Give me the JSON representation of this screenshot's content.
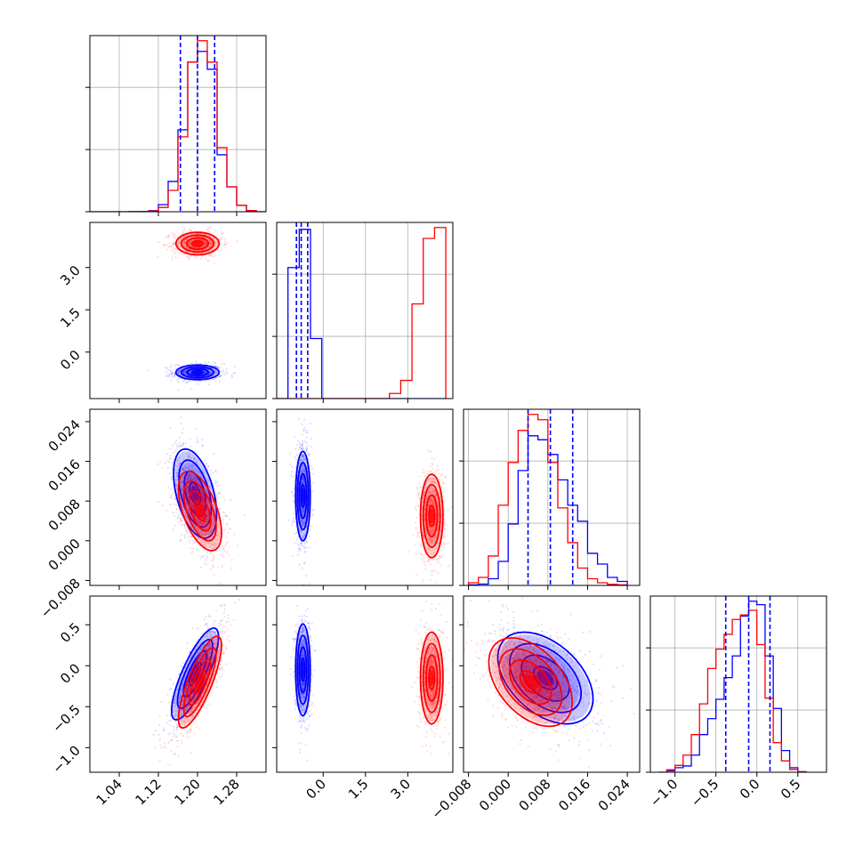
{
  "chart_data": {
    "type": "corner",
    "grid": true,
    "colors": {
      "blue": "#0000ff",
      "red": "#ff0000"
    },
    "series": [],
    "parameters": [
      {
        "range": [
          0.98,
          1.34
        ],
        "ticks": [
          1.04,
          1.12,
          1.2,
          1.28
        ],
        "tick_labels": [
          "1.04",
          "1.12",
          "1.20",
          "1.28"
        ]
      },
      {
        "range": [
          -1.65,
          4.6
        ],
        "ticks": [
          0.0,
          1.5,
          3.0
        ],
        "tick_labels": [
          "0.0",
          "1.5",
          "3.0"
        ]
      },
      {
        "range": [
          -0.009,
          0.0265
        ],
        "ticks": [
          -0.008,
          0.0,
          0.008,
          0.016,
          0.024
        ],
        "tick_labels": [
          "−0.008",
          "0.000",
          "0.008",
          "0.016",
          "0.024"
        ]
      },
      {
        "range": [
          -1.3,
          0.85
        ],
        "ticks": [
          -1.0,
          -0.5,
          0.0,
          0.5
        ],
        "tick_labels": [
          "−1.0",
          "−0.5",
          "0.0",
          "0.5"
        ]
      }
    ],
    "histograms": [
      {
        "param_index": 0,
        "edges": [
          0.98,
          1.0,
          1.02,
          1.04,
          1.06,
          1.08,
          1.1,
          1.12,
          1.14,
          1.16,
          1.18,
          1.2,
          1.22,
          1.24,
          1.26,
          1.28,
          1.3,
          1.32,
          1.34
        ],
        "blue": [
          0,
          0,
          0,
          0,
          0.2,
          0.6,
          3,
          20,
          85,
          230,
          420,
          450,
          400,
          160,
          70,
          18,
          3,
          0
        ],
        "red": [
          0,
          0,
          0,
          0,
          0.2,
          0.4,
          2,
          12,
          60,
          210,
          420,
          480,
          420,
          180,
          70,
          18,
          3,
          0
        ],
        "quantiles": [
          1.165,
          1.2,
          1.235
        ]
      },
      {
        "param_index": 1,
        "edges": [
          -1.65,
          -1.25,
          -0.85,
          -0.45,
          -0.05,
          0.35,
          0.75,
          1.15,
          1.55,
          1.95,
          2.35,
          2.75,
          3.15,
          3.55,
          3.95,
          4.35
        ],
        "blue": [
          0,
          720,
          930,
          330,
          0,
          0,
          0,
          0,
          0,
          0,
          0,
          0,
          0,
          0,
          0
        ],
        "red": [
          0,
          0,
          0,
          0,
          0,
          0,
          0,
          0,
          0,
          0,
          28,
          100,
          520,
          880,
          940
        ],
        "quantiles": [
          -0.95,
          -0.78,
          -0.55
        ]
      },
      {
        "param_index": 2,
        "edges": [
          -0.008,
          -0.006,
          -0.004,
          -0.002,
          0.0,
          0.002,
          0.004,
          0.006,
          0.008,
          0.01,
          0.012,
          0.014,
          0.016,
          0.018,
          0.02,
          0.022,
          0.024
        ],
        "blue": [
          2,
          5,
          25,
          90,
          230,
          430,
          560,
          545,
          490,
          395,
          300,
          240,
          120,
          80,
          30,
          15
        ],
        "red": [
          10,
          30,
          110,
          300,
          460,
          580,
          640,
          620,
          460,
          290,
          160,
          65,
          25,
          10,
          4,
          2
        ],
        "quantiles": [
          0.004,
          0.0085,
          0.013
        ]
      },
      {
        "param_index": 3,
        "edges": [
          -1.2,
          -1.1,
          -1.0,
          -0.9,
          -0.8,
          -0.7,
          -0.6,
          -0.5,
          -0.4,
          -0.3,
          -0.2,
          -0.1,
          0.0,
          0.1,
          0.2,
          0.3,
          0.4,
          0.5,
          0.6
        ],
        "blue": [
          0,
          12,
          40,
          55,
          150,
          330,
          470,
          640,
          830,
          1020,
          1370,
          1500,
          1470,
          1020,
          560,
          190,
          40,
          5
        ],
        "red": [
          0,
          22,
          60,
          150,
          330,
          600,
          910,
          1080,
          1210,
          1340,
          1380,
          1420,
          1120,
          650,
          260,
          100,
          25,
          4
        ],
        "quantiles": [
          -0.38,
          -0.1,
          0.16
        ]
      }
    ],
    "pairs": [
      {
        "row": 1,
        "col": 0,
        "blue": {
          "center": [
            1.2,
            -0.72
          ],
          "sigma": [
            0.022,
            0.13
          ],
          "rho": 0.0
        },
        "red": {
          "center": [
            1.2,
            3.85
          ],
          "sigma": [
            0.022,
            0.2
          ],
          "rho": 0.0
        }
      },
      {
        "row": 2,
        "col": 0,
        "blue": {
          "center": [
            1.195,
            0.0095
          ],
          "sigma": [
            0.022,
            0.0045
          ],
          "rho": -0.45
        },
        "red": {
          "center": [
            1.205,
            0.006
          ],
          "sigma": [
            0.022,
            0.004
          ],
          "rho": -0.55
        }
      },
      {
        "row": 2,
        "col": 1,
        "blue": {
          "center": [
            -0.72,
            0.009
          ],
          "sigma": [
            0.13,
            0.0045
          ],
          "rho": 0.0
        },
        "red": {
          "center": [
            3.85,
            0.005
          ],
          "sigma": [
            0.2,
            0.0042
          ],
          "rho": 0.0
        }
      },
      {
        "row": 3,
        "col": 0,
        "blue": {
          "center": [
            1.195,
            -0.1
          ],
          "sigma": [
            0.024,
            0.28
          ],
          "rho": 0.8
        },
        "red": {
          "center": [
            1.205,
            -0.2
          ],
          "sigma": [
            0.022,
            0.28
          ],
          "rho": 0.8
        }
      },
      {
        "row": 3,
        "col": 1,
        "blue": {
          "center": [
            -0.72,
            -0.05
          ],
          "sigma": [
            0.13,
            0.28
          ],
          "rho": 0.0
        },
        "red": {
          "center": [
            3.85,
            -0.15
          ],
          "sigma": [
            0.2,
            0.28
          ],
          "rho": 0.0
        }
      },
      {
        "row": 3,
        "col": 2,
        "blue": {
          "center": [
            0.0075,
            -0.15
          ],
          "sigma": [
            0.0048,
            0.28
          ],
          "rho": -0.45
        },
        "red": {
          "center": [
            0.0045,
            -0.2
          ],
          "sigma": [
            0.0042,
            0.27
          ],
          "rho": -0.45
        }
      }
    ]
  }
}
